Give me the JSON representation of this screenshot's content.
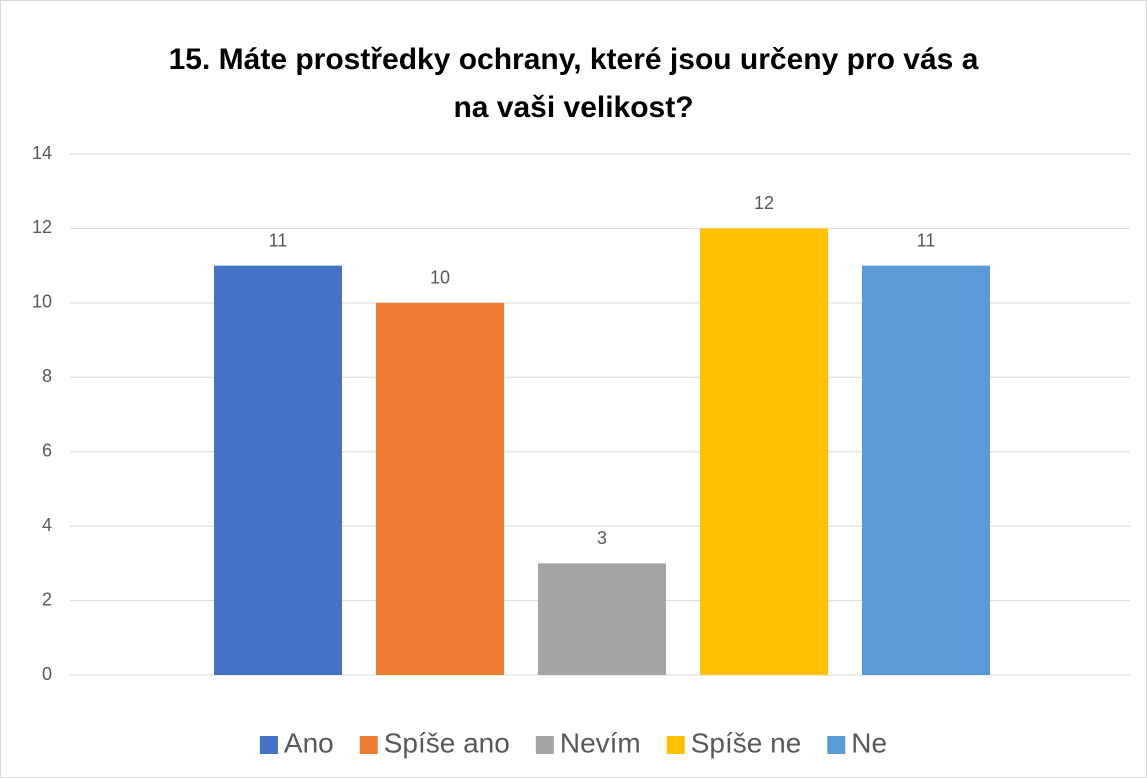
{
  "chart_data": {
    "type": "bar",
    "title": "15. Máte prostředky ochrany, které jsou určeny pro vás a na vaši velikost?",
    "series": [
      {
        "name": "Ano",
        "color": "#4472c4",
        "values": [
          11
        ]
      },
      {
        "name": "Spíše ano",
        "color": "#ed7d31",
        "values": [
          10
        ]
      },
      {
        "name": "Nevím",
        "color": "#a5a5a5",
        "values": [
          3
        ]
      },
      {
        "name": "Spíše ne",
        "color": "#ffc000",
        "values": [
          12
        ]
      },
      {
        "name": "Ne",
        "color": "#5b9bd5",
        "values": [
          11
        ]
      }
    ],
    "ylim": [
      0,
      14
    ],
    "yticks": [
      0,
      2,
      4,
      6,
      8,
      10,
      12,
      14
    ],
    "grid": true,
    "legend": "bottom"
  }
}
